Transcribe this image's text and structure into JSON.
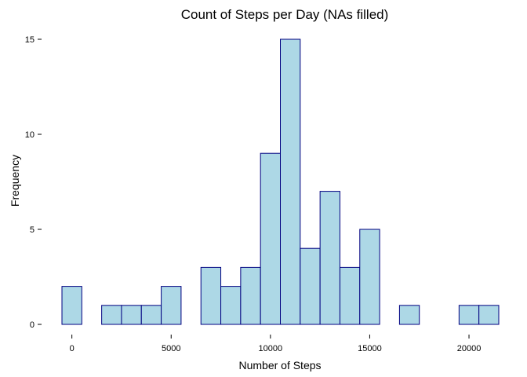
{
  "chart_data": {
    "type": "bar",
    "title": "Count of Steps per Day (NAs filled)",
    "xlabel": "Number of Steps",
    "ylabel": "Frequency",
    "bin_width": 1000,
    "x_ticks": [
      0,
      5000,
      10000,
      15000,
      20000
    ],
    "x_tick_labels": [
      "0",
      "5000",
      "10000",
      "15000",
      "20000"
    ],
    "y_ticks": [
      0,
      5,
      10,
      15
    ],
    "y_tick_labels": [
      "0",
      "5",
      "10",
      "15"
    ],
    "xlim": [
      -500,
      21500
    ],
    "ylim": [
      0,
      15
    ],
    "bins": [
      {
        "x_start": -500,
        "x_end": 500,
        "count": 2
      },
      {
        "x_start": 500,
        "x_end": 1500,
        "count": 0
      },
      {
        "x_start": 1500,
        "x_end": 2500,
        "count": 1
      },
      {
        "x_start": 2500,
        "x_end": 3500,
        "count": 1
      },
      {
        "x_start": 3500,
        "x_end": 4500,
        "count": 1
      },
      {
        "x_start": 4500,
        "x_end": 5500,
        "count": 2
      },
      {
        "x_start": 5500,
        "x_end": 6500,
        "count": 0
      },
      {
        "x_start": 6500,
        "x_end": 7500,
        "count": 3
      },
      {
        "x_start": 7500,
        "x_end": 8500,
        "count": 2
      },
      {
        "x_start": 8500,
        "x_end": 9500,
        "count": 3
      },
      {
        "x_start": 9500,
        "x_end": 10500,
        "count": 9
      },
      {
        "x_start": 10500,
        "x_end": 11500,
        "count": 15
      },
      {
        "x_start": 11500,
        "x_end": 12500,
        "count": 4
      },
      {
        "x_start": 12500,
        "x_end": 13500,
        "count": 7
      },
      {
        "x_start": 13500,
        "x_end": 14500,
        "count": 3
      },
      {
        "x_start": 14500,
        "x_end": 15500,
        "count": 5
      },
      {
        "x_start": 15500,
        "x_end": 16500,
        "count": 0
      },
      {
        "x_start": 16500,
        "x_end": 17500,
        "count": 1
      },
      {
        "x_start": 17500,
        "x_end": 18500,
        "count": 0
      },
      {
        "x_start": 18500,
        "x_end": 19500,
        "count": 0
      },
      {
        "x_start": 19500,
        "x_end": 20500,
        "count": 1
      },
      {
        "x_start": 20500,
        "x_end": 21500,
        "count": 1
      }
    ],
    "bar_fill": "#add8e6",
    "bar_stroke": "#000080",
    "grid": false,
    "legend": false
  }
}
